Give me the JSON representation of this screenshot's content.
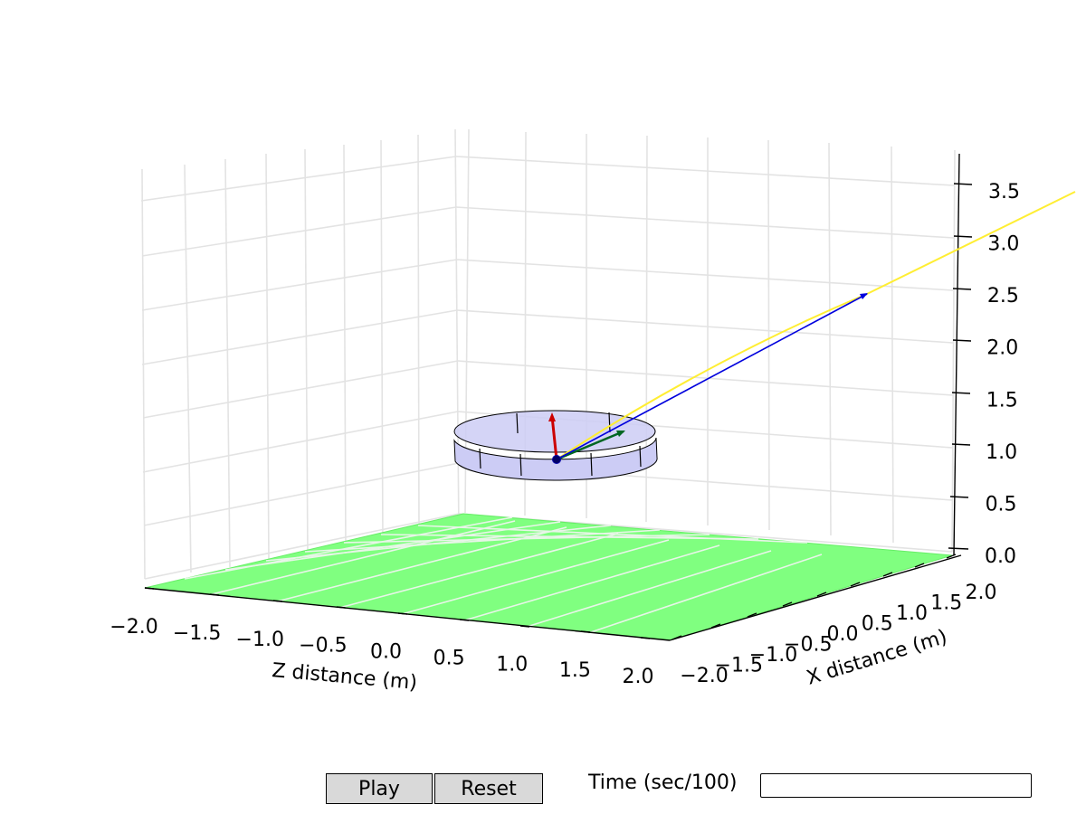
{
  "chart_data": {
    "type": "3d-line",
    "xlabel": "Z distance (m)",
    "ylabel": "X distance (m)",
    "zlabel": "",
    "z_axis_ticks": [
      "−2.0",
      "−1.5",
      "−1.0",
      "−0.5",
      "0.0",
      "0.5",
      "1.0",
      "1.5",
      "2.0"
    ],
    "x_axis_ticks": [
      "−2.0",
      "−1.5",
      "−1.0",
      "−0.5",
      "0.0",
      "0.5",
      "1.0",
      "1.5",
      "2.0"
    ],
    "height_ticks": [
      "0.0",
      "0.5",
      "1.0",
      "1.5",
      "2.0",
      "2.5",
      "3.0",
      "3.5"
    ],
    "xlim": [
      -2.0,
      2.0
    ],
    "ylim": [
      -2.0,
      2.0
    ],
    "zlim": [
      0.0,
      3.8
    ],
    "grid": true,
    "ground_color": "#80ff80",
    "disk_color": "#ccccf5",
    "trajectory_color": "#ffee33",
    "arrow_colors": [
      "#cc0000",
      "#006622",
      "#0000dd"
    ]
  },
  "controls": {
    "play_label": "Play",
    "reset_label": "Reset",
    "time_label": "Time (sec/100)",
    "time_value": ""
  }
}
